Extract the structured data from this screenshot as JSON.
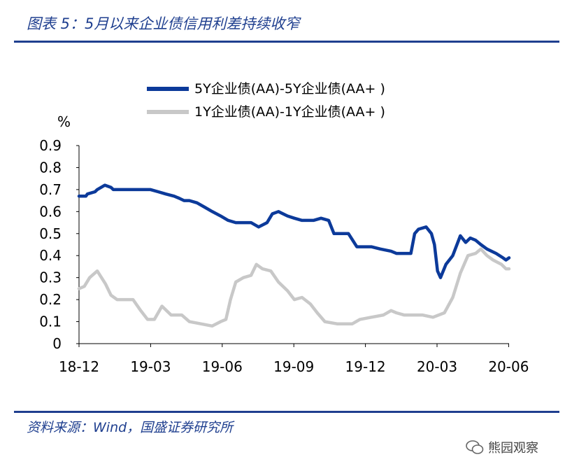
{
  "header": {
    "title": "图表 5：5月以来企业债信用利差持续收窄"
  },
  "footer": {
    "source": "资料来源：Wind，国盛证券研究所",
    "watermark": "熊园观察"
  },
  "colors": {
    "brand": "#1f3f8f",
    "series1": "#0c3a9a",
    "series2": "#c8c8c8"
  },
  "chart_data": {
    "type": "line",
    "ylabel": "%",
    "ylim": [
      0,
      0.9
    ],
    "yticks": [
      "0",
      "0.1",
      "0.2",
      "0.3",
      "0.4",
      "0.5",
      "0.6",
      "0.7",
      "0.8",
      "0.9"
    ],
    "xticks": [
      "18-12",
      "19-03",
      "19-06",
      "19-09",
      "19-12",
      "20-03",
      "20-06"
    ],
    "legend_position": "top-right",
    "grid": false,
    "series": [
      {
        "name": "5Y企业债(AA)-5Y企业债(AA+ )",
        "color": "#0c3a9a",
        "points": [
          [
            "2018-12-01",
            0.67
          ],
          [
            "2018-12-10",
            0.67
          ],
          [
            "2018-12-12",
            0.68
          ],
          [
            "2018-12-22",
            0.69
          ],
          [
            "2018-12-25",
            0.7
          ],
          [
            "2019-01-04",
            0.72
          ],
          [
            "2019-01-12",
            0.71
          ],
          [
            "2019-01-15",
            0.7
          ],
          [
            "2019-02-15",
            0.7
          ],
          [
            "2019-03-05",
            0.7
          ],
          [
            "2019-03-15",
            0.69
          ],
          [
            "2019-03-25",
            0.68
          ],
          [
            "2019-04-05",
            0.67
          ],
          [
            "2019-04-12",
            0.66
          ],
          [
            "2019-04-18",
            0.65
          ],
          [
            "2019-04-25",
            0.65
          ],
          [
            "2019-05-05",
            0.64
          ],
          [
            "2019-05-15",
            0.62
          ],
          [
            "2019-05-25",
            0.6
          ],
          [
            "2019-06-05",
            0.58
          ],
          [
            "2019-06-15",
            0.56
          ],
          [
            "2019-06-25",
            0.55
          ],
          [
            "2019-07-05",
            0.55
          ],
          [
            "2019-07-15",
            0.55
          ],
          [
            "2019-07-25",
            0.53
          ],
          [
            "2019-08-05",
            0.55
          ],
          [
            "2019-08-12",
            0.59
          ],
          [
            "2019-08-20",
            0.6
          ],
          [
            "2019-09-01",
            0.58
          ],
          [
            "2019-09-10",
            0.57
          ],
          [
            "2019-09-20",
            0.56
          ],
          [
            "2019-10-05",
            0.56
          ],
          [
            "2019-10-15",
            0.57
          ],
          [
            "2019-10-25",
            0.56
          ],
          [
            "2019-11-01",
            0.5
          ],
          [
            "2019-11-20",
            0.5
          ],
          [
            "2019-12-01",
            0.44
          ],
          [
            "2019-12-20",
            0.44
          ],
          [
            "2020-01-01",
            0.43
          ],
          [
            "2020-01-15",
            0.42
          ],
          [
            "2020-01-22",
            0.41
          ],
          [
            "2020-02-10",
            0.41
          ],
          [
            "2020-02-15",
            0.5
          ],
          [
            "2020-02-20",
            0.52
          ],
          [
            "2020-03-01",
            0.53
          ],
          [
            "2020-03-08",
            0.5
          ],
          [
            "2020-03-12",
            0.45
          ],
          [
            "2020-03-16",
            0.33
          ],
          [
            "2020-03-20",
            0.3
          ],
          [
            "2020-03-27",
            0.36
          ],
          [
            "2020-04-05",
            0.4
          ],
          [
            "2020-04-15",
            0.49
          ],
          [
            "2020-04-22",
            0.46
          ],
          [
            "2020-04-28",
            0.48
          ],
          [
            "2020-05-05",
            0.47
          ],
          [
            "2020-05-12",
            0.45
          ],
          [
            "2020-05-20",
            0.43
          ],
          [
            "2020-06-01",
            0.41
          ],
          [
            "2020-06-10",
            0.39
          ],
          [
            "2020-06-14",
            0.38
          ],
          [
            "2020-06-18",
            0.39
          ]
        ]
      },
      {
        "name": "1Y企业债(AA)-1Y企业债(AA+ )",
        "color": "#c8c8c8",
        "points": [
          [
            "2018-12-01",
            0.25
          ],
          [
            "2018-12-08",
            0.26
          ],
          [
            "2018-12-15",
            0.3
          ],
          [
            "2018-12-25",
            0.33
          ],
          [
            "2019-01-05",
            0.27
          ],
          [
            "2019-01-12",
            0.22
          ],
          [
            "2019-01-20",
            0.2
          ],
          [
            "2019-02-10",
            0.2
          ],
          [
            "2019-02-20",
            0.15
          ],
          [
            "2019-03-01",
            0.11
          ],
          [
            "2019-03-10",
            0.11
          ],
          [
            "2019-03-20",
            0.17
          ],
          [
            "2019-04-01",
            0.13
          ],
          [
            "2019-04-15",
            0.13
          ],
          [
            "2019-04-25",
            0.1
          ],
          [
            "2019-05-10",
            0.09
          ],
          [
            "2019-05-25",
            0.08
          ],
          [
            "2019-06-05",
            0.1
          ],
          [
            "2019-06-12",
            0.11
          ],
          [
            "2019-06-18",
            0.2
          ],
          [
            "2019-06-25",
            0.28
          ],
          [
            "2019-07-05",
            0.3
          ],
          [
            "2019-07-15",
            0.31
          ],
          [
            "2019-07-22",
            0.36
          ],
          [
            "2019-07-30",
            0.34
          ],
          [
            "2019-08-10",
            0.33
          ],
          [
            "2019-08-20",
            0.28
          ],
          [
            "2019-09-01",
            0.24
          ],
          [
            "2019-09-10",
            0.2
          ],
          [
            "2019-09-20",
            0.21
          ],
          [
            "2019-10-01",
            0.18
          ],
          [
            "2019-10-10",
            0.14
          ],
          [
            "2019-10-20",
            0.1
          ],
          [
            "2019-11-05",
            0.09
          ],
          [
            "2019-11-25",
            0.09
          ],
          [
            "2019-12-05",
            0.11
          ],
          [
            "2019-12-20",
            0.12
          ],
          [
            "2020-01-05",
            0.13
          ],
          [
            "2020-01-15",
            0.15
          ],
          [
            "2020-01-22",
            0.14
          ],
          [
            "2020-02-01",
            0.13
          ],
          [
            "2020-02-25",
            0.13
          ],
          [
            "2020-03-10",
            0.12
          ],
          [
            "2020-03-25",
            0.14
          ],
          [
            "2020-04-05",
            0.21
          ],
          [
            "2020-04-15",
            0.32
          ],
          [
            "2020-04-25",
            0.4
          ],
          [
            "2020-05-05",
            0.41
          ],
          [
            "2020-05-12",
            0.43
          ],
          [
            "2020-05-20",
            0.4
          ],
          [
            "2020-05-28",
            0.38
          ],
          [
            "2020-06-08",
            0.36
          ],
          [
            "2020-06-14",
            0.34
          ],
          [
            "2020-06-18",
            0.34
          ]
        ]
      }
    ]
  }
}
